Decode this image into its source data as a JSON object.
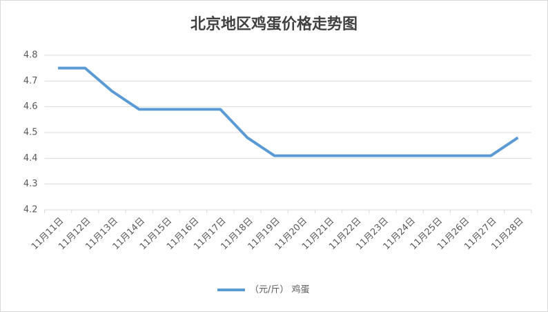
{
  "chart_data": {
    "type": "line",
    "title": "北京地区鸡蛋价格走势图",
    "categories": [
      "11月11日",
      "11月12日",
      "11月13日",
      "11月14日",
      "11月15日",
      "11月16日",
      "11月17日",
      "11月18日",
      "11月19日",
      "11月20日",
      "11月21日",
      "11月22日",
      "11月23日",
      "11月24日",
      "11月25日",
      "11月26日",
      "11月27日",
      "11月28日"
    ],
    "series": [
      {
        "name": "（元/斤） 鸡蛋",
        "color": "#5b9bd5",
        "values": [
          4.75,
          4.75,
          4.66,
          4.59,
          4.59,
          4.59,
          4.59,
          4.48,
          4.41,
          4.41,
          4.41,
          4.41,
          4.41,
          4.41,
          4.41,
          4.41,
          4.41,
          4.48
        ]
      }
    ],
    "ylim": [
      4.2,
      4.8
    ],
    "yticks": [
      4.2,
      4.3,
      4.4,
      4.5,
      4.6,
      4.7,
      4.8
    ],
    "grid": true,
    "legend": "bottom"
  }
}
